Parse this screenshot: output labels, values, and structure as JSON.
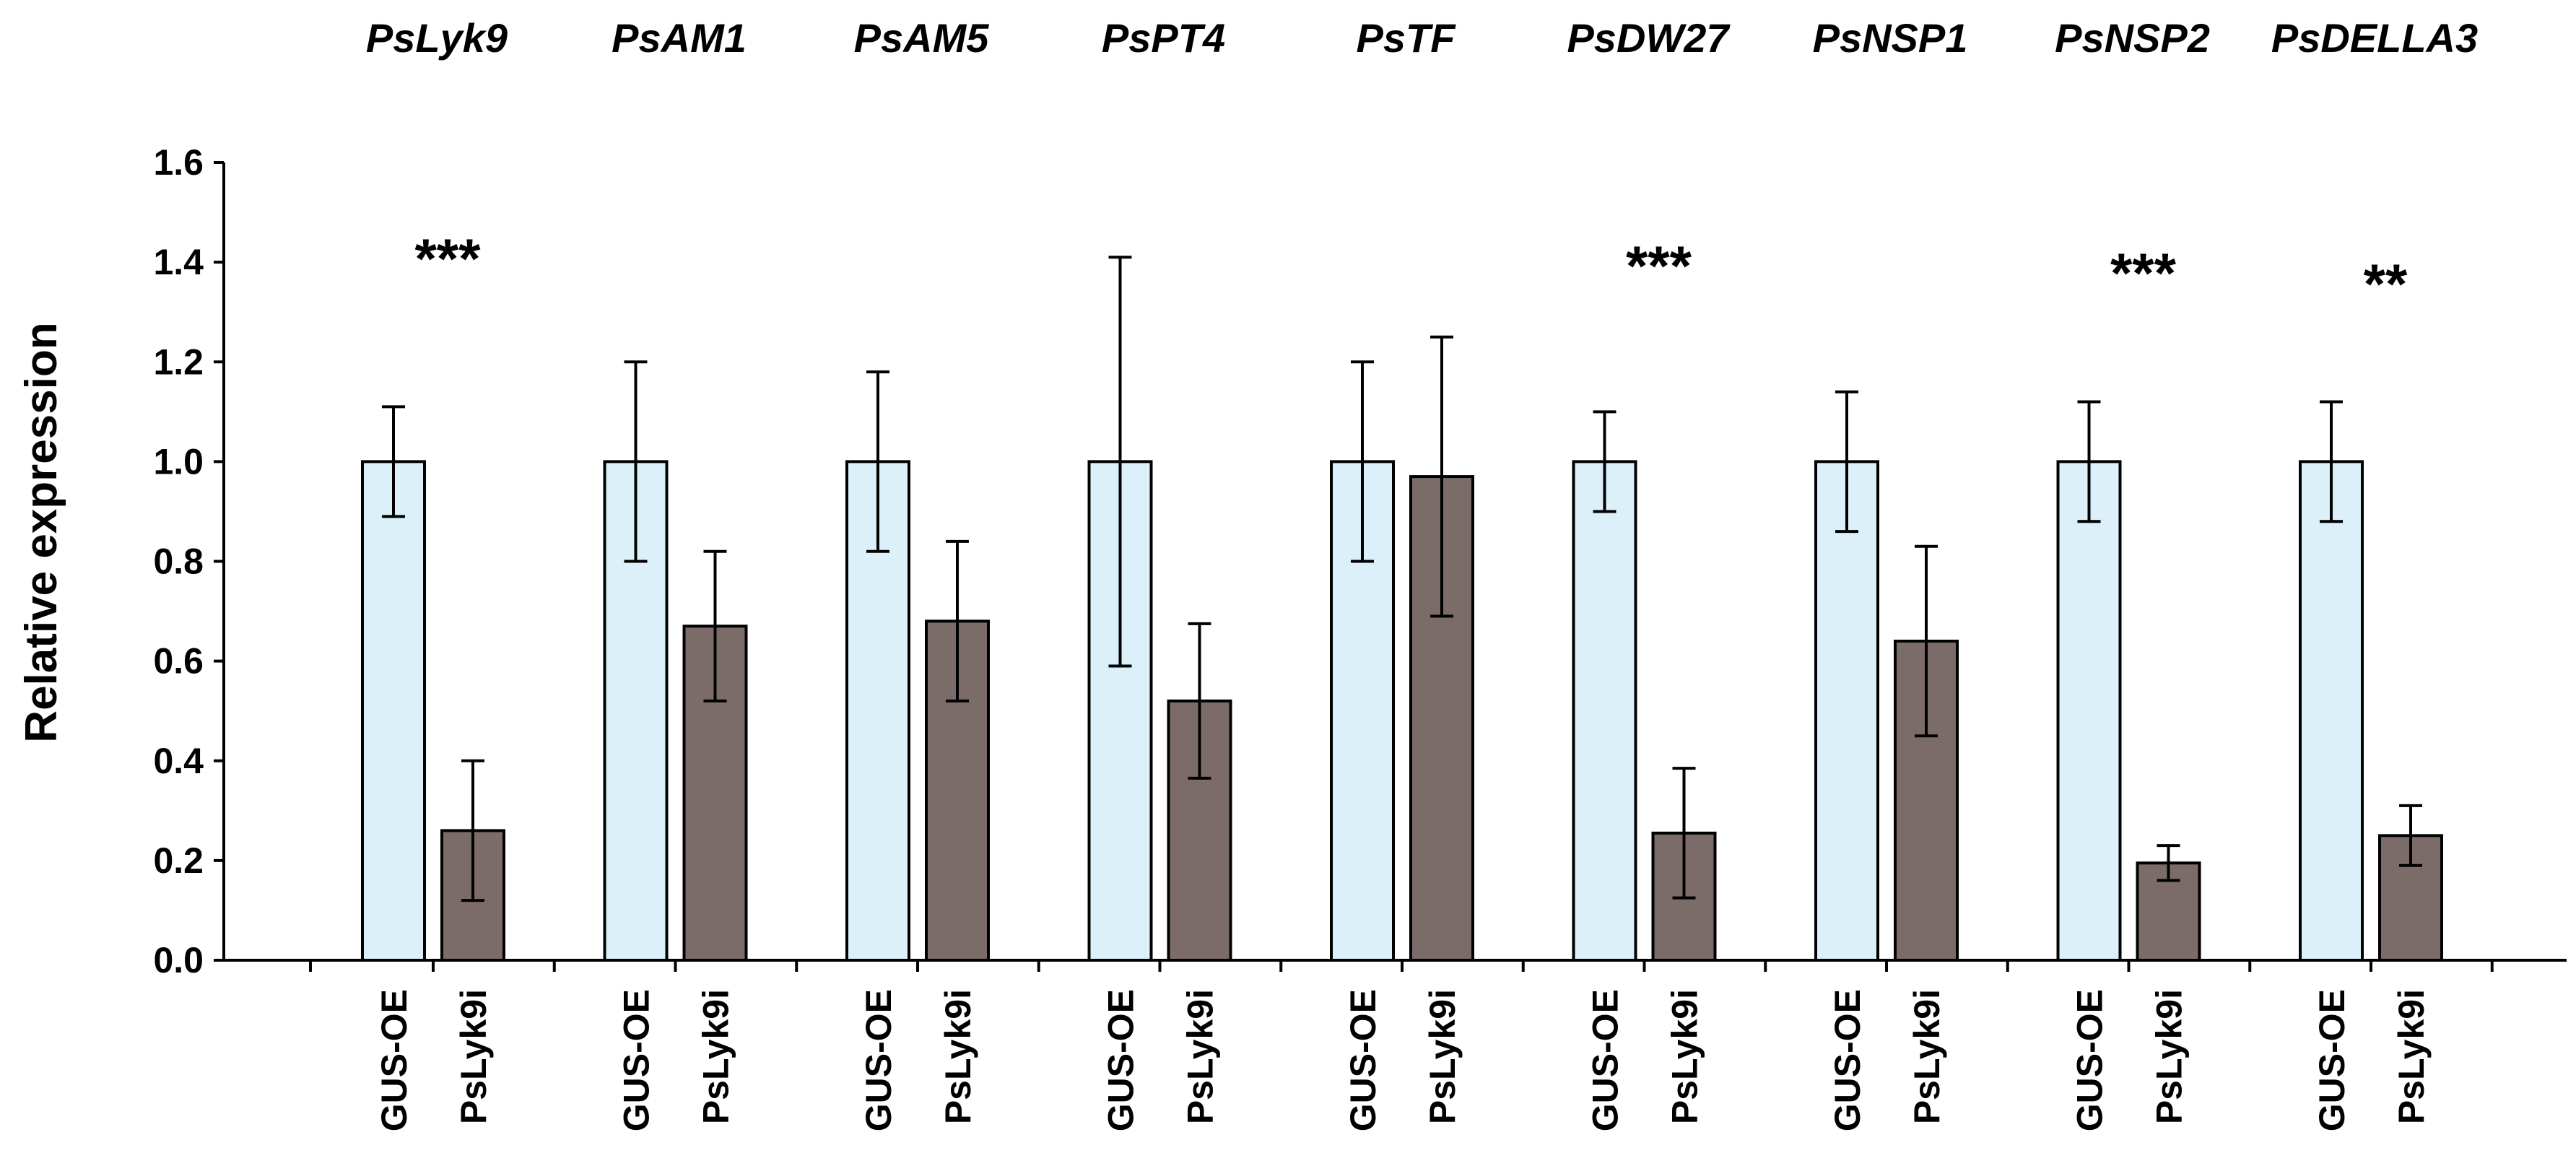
{
  "chart_data": {
    "type": "bar",
    "title": "",
    "xlabel": "",
    "ylabel": "Relative expression",
    "ylim": [
      0,
      1.6
    ],
    "yticks": [
      "0.0",
      "0.2",
      "0.4",
      "0.6",
      "0.8",
      "1.0",
      "1.2",
      "1.4",
      "1.6"
    ],
    "series_names": [
      "GUS-OE",
      "PsLyk9i"
    ],
    "colors": {
      "GUS-OE": "#dcf0fa",
      "PsLyk9i": "#7b6c6a",
      "axis": "#000000"
    },
    "groups": [
      {
        "gene": "PsLyk9",
        "values": [
          1.0,
          0.26
        ],
        "errors": [
          0.11,
          0.14
        ],
        "significance": "***"
      },
      {
        "gene": "PsAM1",
        "values": [
          1.0,
          0.67
        ],
        "errors": [
          0.2,
          0.15
        ],
        "significance": ""
      },
      {
        "gene": "PsAM5",
        "values": [
          1.0,
          0.68
        ],
        "errors": [
          0.18,
          0.16
        ],
        "significance": ""
      },
      {
        "gene": "PsPT4",
        "values": [
          1.0,
          0.52
        ],
        "errors": [
          0.41,
          0.155
        ],
        "significance": ""
      },
      {
        "gene": "PsTF",
        "values": [
          1.0,
          0.97
        ],
        "errors": [
          0.2,
          0.28
        ],
        "significance": ""
      },
      {
        "gene": "PsDW27",
        "values": [
          1.0,
          0.255
        ],
        "errors": [
          0.1,
          0.13
        ],
        "significance": "***"
      },
      {
        "gene": "PsNSP1",
        "values": [
          1.0,
          0.64
        ],
        "errors": [
          0.14,
          0.19
        ],
        "significance": ""
      },
      {
        "gene": "PsNSP2",
        "values": [
          1.0,
          0.195
        ],
        "errors": [
          0.12,
          0.035
        ],
        "significance": "***"
      },
      {
        "gene": "PsDELLA3",
        "values": [
          1.0,
          0.25
        ],
        "errors": [
          0.12,
          0.06
        ],
        "significance": "**"
      }
    ]
  }
}
